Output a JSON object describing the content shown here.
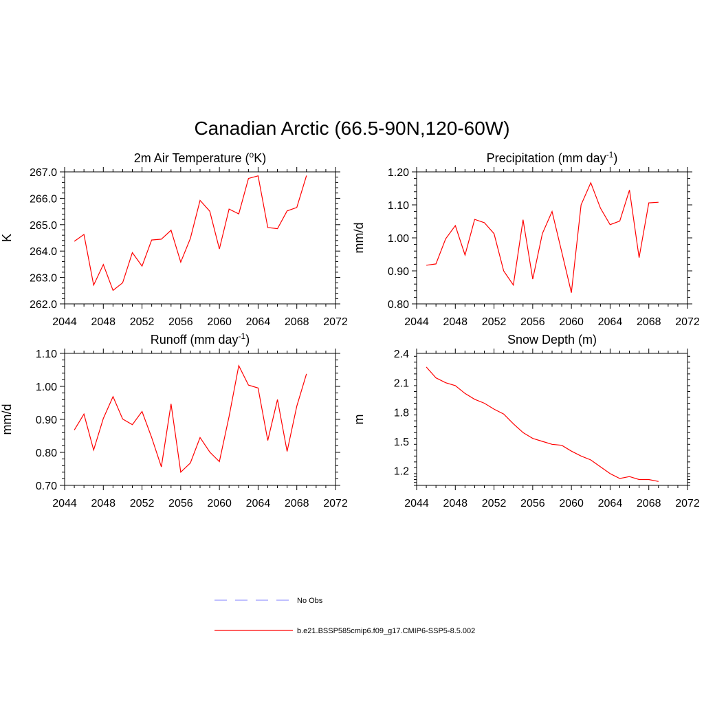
{
  "figure_title": "Canadian Arctic (66.5-90N,120-60W)",
  "chart_data": [
    {
      "type": "line",
      "title": "2m Air Temperature (°K)",
      "title_parts": [
        "2m Air Temperature (",
        "o",
        "K)"
      ],
      "ylabel": "K",
      "xlim": [
        2044,
        2072
      ],
      "ylim": [
        262.0,
        267.0
      ],
      "xticks": [
        2044,
        2048,
        2052,
        2056,
        2060,
        2064,
        2068,
        2072
      ],
      "yticks": [
        "262.0",
        "263.0",
        "264.0",
        "265.0",
        "266.0",
        "267.0"
      ],
      "x": [
        2045,
        2046,
        2047,
        2048,
        2049,
        2050,
        2051,
        2052,
        2053,
        2054,
        2055,
        2056,
        2057,
        2058,
        2059,
        2060,
        2061,
        2062,
        2063,
        2064,
        2065,
        2066,
        2067,
        2068,
        2069
      ],
      "series": [
        {
          "values": [
            264.37,
            264.63,
            262.71,
            263.49,
            262.51,
            262.8,
            263.94,
            263.43,
            264.42,
            264.45,
            264.79,
            263.58,
            264.48,
            265.92,
            265.51,
            264.08,
            265.59,
            265.41,
            266.75,
            266.85,
            264.89,
            264.85,
            265.52,
            265.65,
            266.86
          ],
          "color": "#ff0000"
        }
      ]
    },
    {
      "type": "line",
      "title": "Precipitation (mm day-1)",
      "title_parts": [
        "Precipitation (mm day",
        "-1",
        ")"
      ],
      "ylabel": "mm/d",
      "xlim": [
        2044,
        2072
      ],
      "ylim": [
        0.8,
        1.2
      ],
      "xticks": [
        2044,
        2048,
        2052,
        2056,
        2060,
        2064,
        2068,
        2072
      ],
      "yticks": [
        "0.80",
        "0.90",
        "1.00",
        "1.10",
        "1.20"
      ],
      "x": [
        2045,
        2046,
        2047,
        2048,
        2049,
        2050,
        2051,
        2052,
        2053,
        2054,
        2055,
        2056,
        2057,
        2058,
        2059,
        2060,
        2061,
        2062,
        2063,
        2064,
        2065,
        2066,
        2067,
        2068,
        2069
      ],
      "series": [
        {
          "values": [
            0.917,
            0.921,
            0.997,
            1.037,
            0.948,
            1.056,
            1.046,
            1.013,
            0.9,
            0.857,
            1.055,
            0.875,
            1.013,
            1.08,
            0.957,
            0.834,
            1.1,
            1.167,
            1.09,
            1.04,
            1.051,
            1.145,
            0.94,
            1.106,
            1.108
          ],
          "color": "#ff0000"
        }
      ]
    },
    {
      "type": "line",
      "title": "Runoff (mm day-1)",
      "title_parts": [
        "Runoff (mm day",
        "-1",
        ")"
      ],
      "ylabel": "mm/d",
      "xlim": [
        2044,
        2072
      ],
      "ylim": [
        0.7,
        1.1
      ],
      "xticks": [
        2044,
        2048,
        2052,
        2056,
        2060,
        2064,
        2068,
        2072
      ],
      "yticks": [
        "0.70",
        "0.80",
        "0.90",
        "1.00",
        "1.10"
      ],
      "x": [
        2045,
        2046,
        2047,
        2048,
        2049,
        2050,
        2051,
        2052,
        2053,
        2054,
        2055,
        2056,
        2057,
        2058,
        2059,
        2060,
        2061,
        2062,
        2063,
        2064,
        2065,
        2066,
        2067,
        2068,
        2069
      ],
      "series": [
        {
          "values": [
            0.868,
            0.916,
            0.807,
            0.903,
            0.969,
            0.901,
            0.884,
            0.924,
            0.845,
            0.756,
            0.947,
            0.74,
            0.768,
            0.845,
            0.801,
            0.772,
            0.909,
            1.063,
            1.004,
            0.995,
            0.836,
            0.96,
            0.803,
            0.94,
            1.038
          ],
          "color": "#ff0000"
        }
      ]
    },
    {
      "type": "line",
      "title": "Snow Depth (m)",
      "title_parts": [
        "Snow Depth (m)",
        "",
        ""
      ],
      "ylabel": "m",
      "xlim": [
        2044,
        2072
      ],
      "ylim": [
        1.05,
        2.4
      ],
      "xticks": [
        2044,
        2048,
        2052,
        2056,
        2060,
        2064,
        2068,
        2072
      ],
      "yticks": [
        "1.2",
        "1.5",
        "1.8",
        "2.1",
        "2.4"
      ],
      "x": [
        2045,
        2046,
        2047,
        2048,
        2049,
        2050,
        2051,
        2052,
        2053,
        2054,
        2055,
        2056,
        2057,
        2058,
        2059,
        2060,
        2061,
        2062,
        2063,
        2064,
        2065,
        2066,
        2067,
        2068,
        2069
      ],
      "series": [
        {
          "values": [
            2.26,
            2.15,
            2.1,
            2.07,
            1.99,
            1.93,
            1.89,
            1.83,
            1.78,
            1.68,
            1.59,
            1.53,
            1.5,
            1.47,
            1.46,
            1.4,
            1.35,
            1.31,
            1.24,
            1.17,
            1.12,
            1.14,
            1.11,
            1.11,
            1.09
          ],
          "color": "#ff0000"
        }
      ]
    }
  ],
  "legend": [
    {
      "label": "No Obs",
      "color": "#9999ff",
      "dash": true
    },
    {
      "label": "b.e21.BSSP585cmip6.f09_g17.CMIP6-SSP5-8.5.002",
      "color": "#ff0000",
      "dash": false
    }
  ]
}
